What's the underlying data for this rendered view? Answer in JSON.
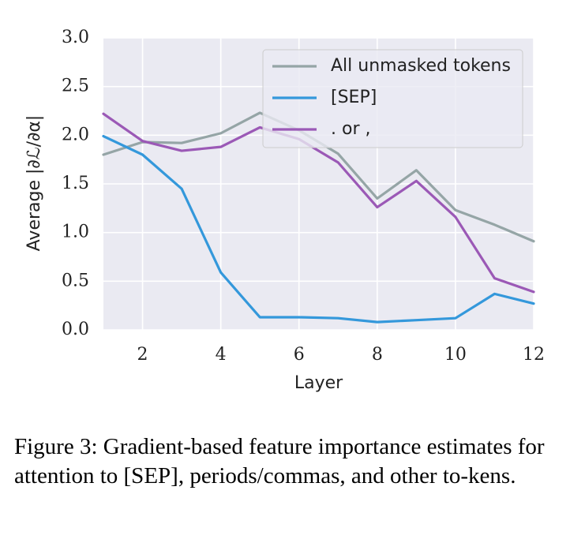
{
  "caption": "Figure 3: Gradient-based feature importance estimates for attention to [SEP], periods/commas, and other to-kens.",
  "chart_data": {
    "type": "line",
    "xlabel": "Layer",
    "ylabel_prefix": "Average",
    "ylabel_math": "|∂ℒ/∂α|",
    "x": [
      1,
      2,
      3,
      4,
      5,
      6,
      7,
      8,
      9,
      10,
      11,
      12
    ],
    "xticks": [
      2,
      4,
      6,
      8,
      10,
      12
    ],
    "yticks": [
      "0.0",
      "0.5",
      "1.0",
      "1.5",
      "2.0",
      "2.5",
      "3.0"
    ],
    "xlim": [
      1,
      12
    ],
    "ylim": [
      0,
      3.0
    ],
    "grid": true,
    "legend_position": "top-right",
    "series": [
      {
        "name": "All unmasked tokens",
        "color": "#95a5a6",
        "values": [
          1.8,
          1.93,
          1.92,
          2.02,
          2.23,
          2.05,
          1.81,
          1.35,
          1.64,
          1.23,
          1.08,
          0.91
        ]
      },
      {
        "name": "[SEP]",
        "color": "#3498db",
        "values": [
          1.99,
          1.8,
          1.45,
          0.59,
          0.13,
          0.13,
          0.12,
          0.08,
          0.1,
          0.12,
          0.37,
          0.27
        ]
      },
      {
        "name": ". or ,",
        "color": "#9b59b6",
        "values": [
          2.22,
          1.94,
          1.84,
          1.88,
          2.08,
          1.96,
          1.72,
          1.26,
          1.53,
          1.16,
          0.53,
          0.39
        ]
      }
    ]
  }
}
